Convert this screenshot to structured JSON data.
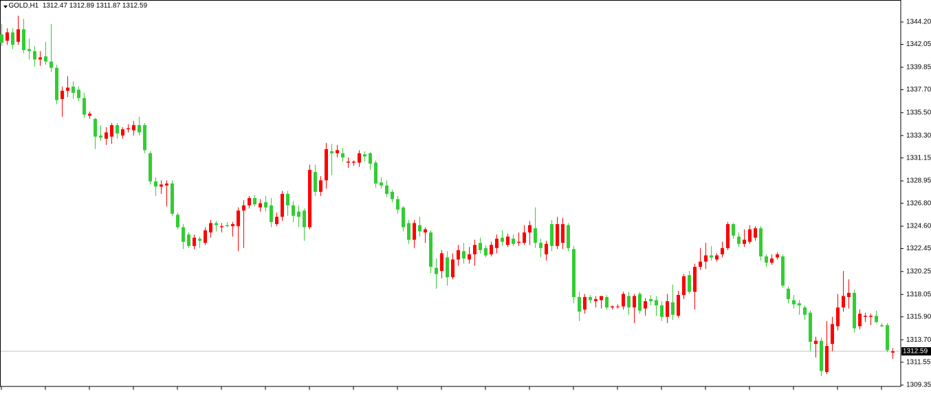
{
  "chart_data": {
    "type": "candlestick",
    "symbol": "GOLD,H1",
    "up_color": "#ff0000",
    "down_color": "#32cd32",
    "ylim": [
      1309.22,
      1346.31
    ],
    "yticks": [
      {
        "value": 1344.2,
        "label": "1344.20"
      },
      1342.05,
      1339.85,
      {
        "value": 1337.7,
        "label": "1337.70"
      },
      {
        "value": 1335.5,
        "label": "1335.50"
      },
      {
        "value": 1333.3,
        "label": "1333.30"
      },
      1331.15,
      1328.95,
      {
        "value": 1326.8,
        "label": "1326.80"
      },
      {
        "value": 1324.6,
        "label": "1324.60"
      },
      1322.45,
      1320.25,
      1318.05,
      {
        "value": 1315.9,
        "label": "1315.90"
      },
      {
        "value": 1313.7,
        "label": "1313.70"
      },
      1311.55,
      1309.35
    ],
    "open": [
      1343.0,
      1342.4,
      1343.2,
      1342.3,
      1343.5,
      1341.6,
      1341.4,
      1340.6,
      1340.9,
      1340.4,
      1339.8,
      1336.8,
      1337.6,
      1338.0,
      1337.7,
      1336.9,
      1335.2,
      1334.9,
      1333.3,
      1333.0,
      1333.2,
      1334.3,
      1333.3,
      1333.9,
      1333.8,
      1334.3,
      1334.3,
      1331.6,
      1328.9,
      1328.4,
      1328.5,
      1328.7,
      1325.7,
      1324.5,
      1323.8,
      1322.7,
      1323.4,
      1323.0,
      1324.0,
      1324.9,
      1324.5,
      1324.7,
      1324.6,
      1324.6,
      1326.1,
      1326.6,
      1327.3,
      1326.4,
      1326.9,
      1326.6,
      1324.8,
      1325.5,
      1327.7,
      1326.6,
      1326.0,
      1326.1,
      1324.5,
      1329.8,
      1327.9,
      1329.0,
      1331.8,
      1331.6,
      1331.6,
      1330.7,
      1330.7,
      1330.7,
      1331.5,
      1331.6,
      1330.7,
      1328.8,
      1328.5,
      1327.9,
      1327.2,
      1326.4,
      1324.9,
      1323.3,
      1324.7,
      1324.0,
      1324.0,
      1320.6,
      1320.3,
      1321.6,
      1319.7,
      1321.4,
      1322.2,
      1321.4,
      1321.9,
      1323.0,
      1322.5,
      1321.9,
      1322.5,
      1323.5,
      1322.8,
      1323.4,
      1323.0,
      1323.0,
      1324.0,
      1324.4,
      1323.0,
      1321.9,
      1324.8,
      1322.7,
      1323.0,
      1324.7,
      1322.4,
      1317.8,
      1316.6,
      1317.8,
      1317.4,
      1317.5,
      1317.8,
      1316.8,
      1316.9,
      1316.9,
      1317.9,
      1316.8,
      1318.1,
      1316.7,
      1317.6,
      1317.5,
      1317.0,
      1315.9,
      1317.3,
      1316.0,
      1318.0,
      1319.9,
      1318.3,
      1320.7,
      1321.2,
      1321.8,
      1321.4,
      1321.9,
      1322.5,
      1324.8,
      1323.6,
      1322.9,
      1323.1,
      1323.5,
      1324.4,
      1321.7,
      1321.1,
      1321.6,
      1321.7,
      1318.6,
      1317.5,
      1317.2,
      1316.8,
      1316.3,
      1313.3,
      1313.6,
      1310.6,
      1313.3,
      1315.0,
      1316.8,
      1317.8,
      1318.2,
      1315.0,
      1315.9,
      1315.9,
      1316.0,
      1315.1,
      1315.1,
      1312.47
    ],
    "high": [
      1344.0,
      1343.6,
      1343.6,
      1344.8,
      1344.5,
      1342.6,
      1341.9,
      1341.4,
      1342.3,
      1344.0,
      1340.1,
      1338.0,
      1339.0,
      1338.5,
      1338.0,
      1337.4,
      1335.6,
      1335.0,
      1334.3,
      1334.1,
      1334.5,
      1334.5,
      1334.1,
      1334.4,
      1334.7,
      1335.1,
      1334.5,
      1331.8,
      1329.3,
      1329.0,
      1329.0,
      1329.0,
      1325.9,
      1324.8,
      1324.0,
      1323.8,
      1323.6,
      1324.5,
      1325.2,
      1325.1,
      1324.9,
      1325.0,
      1325.0,
      1326.4,
      1327.1,
      1327.5,
      1327.6,
      1327.2,
      1327.5,
      1327.3,
      1325.9,
      1328.0,
      1328.0,
      1327.0,
      1326.6,
      1326.3,
      1330.5,
      1330.5,
      1329.4,
      1332.6,
      1332.5,
      1332.4,
      1332.1,
      1331.2,
      1330.9,
      1331.9,
      1331.8,
      1331.7,
      1330.9,
      1329.3,
      1329.0,
      1328.1,
      1327.5,
      1326.5,
      1325.2,
      1325.2,
      1325.5,
      1324.5,
      1324.2,
      1321.5,
      1322.3,
      1322.2,
      1322.0,
      1322.8,
      1323.0,
      1322.6,
      1323.3,
      1323.5,
      1322.8,
      1323.1,
      1323.8,
      1324.2,
      1323.9,
      1323.8,
      1324.0,
      1324.7,
      1325.1,
      1326.4,
      1323.4,
      1323.2,
      1325.2,
      1325.5,
      1325.4,
      1324.9,
      1322.7,
      1318.3,
      1318.1,
      1318.0,
      1317.9,
      1317.9,
      1318.0,
      1317.0,
      1317.1,
      1318.3,
      1318.3,
      1318.1,
      1318.3,
      1317.7,
      1318.0,
      1317.9,
      1317.4,
      1318.1,
      1319.0,
      1318.4,
      1320.0,
      1320.3,
      1321.0,
      1322.5,
      1323.0,
      1322.7,
      1322.0,
      1323.1,
      1325.0,
      1324.9,
      1324.0,
      1324.3,
      1324.7,
      1324.6,
      1324.6,
      1321.9,
      1321.9,
      1322.1,
      1321.9,
      1318.8,
      1318.0,
      1317.5,
      1317.0,
      1316.5,
      1314.0,
      1313.9,
      1315.5,
      1315.9,
      1318.1,
      1320.3,
      1319.5,
      1318.5,
      1316.6,
      1316.3,
      1316.2,
      1316.5,
      1315.3,
      1315.3,
      1312.89
    ],
    "low": [
      1341.9,
      1342.0,
      1341.6,
      1342.0,
      1341.2,
      1340.6,
      1339.9,
      1340.0,
      1340.1,
      1339.4,
      1336.3,
      1335.1,
      1337.0,
      1336.8,
      1336.6,
      1335.0,
      1334.9,
      1332.0,
      1332.8,
      1332.4,
      1332.5,
      1333.0,
      1333.0,
      1333.6,
      1333.3,
      1333.3,
      1331.6,
      1328.6,
      1327.5,
      1327.7,
      1326.5,
      1325.6,
      1324.3,
      1322.4,
      1322.5,
      1322.4,
      1322.5,
      1322.8,
      1323.5,
      1324.1,
      1324.0,
      1324.5,
      1323.6,
      1322.2,
      1322.5,
      1326.3,
      1326.5,
      1326.0,
      1326.0,
      1324.5,
      1324.6,
      1325.1,
      1325.6,
      1325.0,
      1324.5,
      1323.2,
      1324.3,
      1327.5,
      1327.5,
      1328.2,
      1329.5,
      1331.2,
      1330.8,
      1330.2,
      1330.4,
      1330.3,
      1330.8,
      1330.0,
      1328.3,
      1328.2,
      1327.4,
      1326.9,
      1325.8,
      1324.1,
      1322.9,
      1322.5,
      1323.6,
      1323.0,
      1320.1,
      1318.6,
      1319.6,
      1318.9,
      1319.5,
      1320.8,
      1321.0,
      1321.0,
      1320.8,
      1322.0,
      1321.6,
      1321.7,
      1322.0,
      1322.7,
      1322.6,
      1322.7,
      1322.7,
      1322.8,
      1322.8,
      1322.5,
      1321.6,
      1321.3,
      1322.2,
      1322.4,
      1322.4,
      1322.2,
      1317.2,
      1315.5,
      1316.2,
      1317.2,
      1316.8,
      1316.7,
      1316.6,
      1316.6,
      1316.7,
      1316.6,
      1316.1,
      1315.3,
      1316.2,
      1316.0,
      1317.0,
      1316.0,
      1315.5,
      1315.3,
      1315.6,
      1315.8,
      1317.6,
      1318.1,
      1316.6,
      1320.4,
      1320.5,
      1321.3,
      1321.2,
      1321.6,
      1322.3,
      1323.4,
      1322.6,
      1322.6,
      1322.9,
      1323.2,
      1321.3,
      1320.7,
      1320.9,
      1321.4,
      1318.7,
      1317.2,
      1316.7,
      1316.1,
      1315.6,
      1312.6,
      1312.0,
      1310.2,
      1310.4,
      1312.6,
      1314.6,
      1316.4,
      1316.7,
      1314.4,
      1314.7,
      1315.4,
      1315.1,
      1315.3,
      1314.9,
      1312.5,
      1311.87
    ],
    "close": [
      1342.2,
      1343.2,
      1342.0,
      1343.5,
      1341.5,
      1341.4,
      1340.6,
      1340.8,
      1340.4,
      1339.8,
      1336.7,
      1337.6,
      1337.9,
      1337.4,
      1336.9,
      1335.3,
      1335.4,
      1333.2,
      1333.1,
      1333.6,
      1334.3,
      1333.5,
      1333.9,
      1334.0,
      1334.3,
      1333.6,
      1331.9,
      1328.9,
      1328.4,
      1328.6,
      1328.7,
      1325.8,
      1324.5,
      1323.1,
      1322.7,
      1323.5,
      1323.2,
      1324.2,
      1324.9,
      1324.7,
      1324.6,
      1324.6,
      1324.8,
      1326.1,
      1326.6,
      1327.3,
      1326.7,
      1326.8,
      1326.4,
      1325.0,
      1325.5,
      1327.7,
      1326.6,
      1325.6,
      1325.5,
      1324.5,
      1330.0,
      1327.9,
      1329.0,
      1332.0,
      1331.6,
      1331.9,
      1331.2,
      1330.8,
      1330.8,
      1331.6,
      1331.3,
      1330.6,
      1328.7,
      1328.5,
      1327.7,
      1327.2,
      1326.2,
      1324.5,
      1323.3,
      1324.9,
      1324.1,
      1324.3,
      1320.7,
      1320.0,
      1322.0,
      1319.7,
      1321.4,
      1322.3,
      1321.5,
      1321.9,
      1322.8,
      1322.3,
      1321.8,
      1322.8,
      1323.4,
      1323.1,
      1323.6,
      1322.9,
      1323.1,
      1324.0,
      1324.7,
      1323.0,
      1322.5,
      1322.9,
      1322.7,
      1324.8,
      1324.8,
      1322.5,
      1317.8,
      1316.4,
      1317.8,
      1317.5,
      1317.6,
      1317.9,
      1316.8,
      1316.9,
      1316.9,
      1318.1,
      1316.8,
      1317.9,
      1316.5,
      1317.4,
      1317.4,
      1317.0,
      1315.9,
      1317.4,
      1316.1,
      1318.0,
      1319.8,
      1318.3,
      1320.7,
      1321.2,
      1321.8,
      1321.6,
      1321.8,
      1322.5,
      1324.8,
      1323.7,
      1322.9,
      1323.3,
      1324.3,
      1324.4,
      1321.7,
      1321.1,
      1321.5,
      1321.9,
      1318.9,
      1317.6,
      1317.1,
      1317.0,
      1316.1,
      1313.5,
      1313.6,
      1310.7,
      1313.1,
      1315.2,
      1316.8,
      1317.9,
      1318.2,
      1314.8,
      1316.2,
      1316.0,
      1316.0,
      1315.4,
      1315.0,
      1312.7,
      1312.59
    ]
  }
}
